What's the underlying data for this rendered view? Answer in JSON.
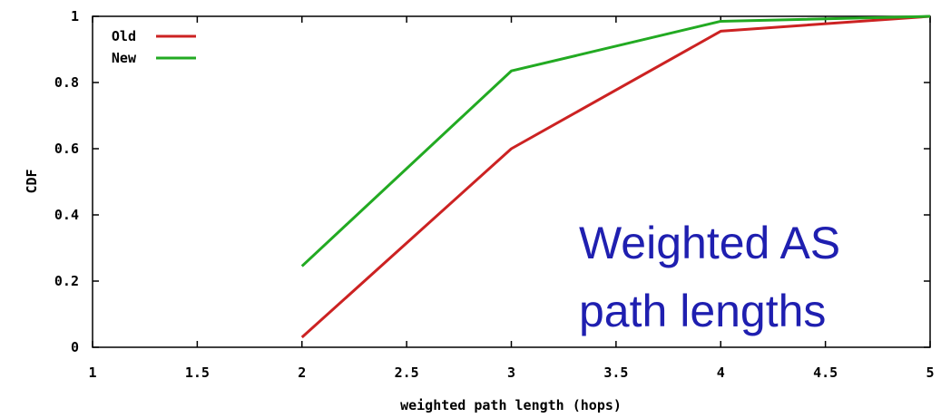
{
  "chart_data": {
    "type": "line",
    "xlabel": "weighted path length (hops)",
    "ylabel": "CDF",
    "xlim": [
      1,
      5
    ],
    "ylim": [
      0,
      1
    ],
    "x_ticks": [
      "1",
      "1.5",
      "2",
      "2.5",
      "3",
      "3.5",
      "4",
      "4.5",
      "5"
    ],
    "y_ticks": [
      "0",
      "0.2",
      "0.4",
      "0.6",
      "0.8",
      "1"
    ],
    "grid": false,
    "legend_position": "top-left",
    "series": [
      {
        "name": "Old",
        "color": "#cc2222",
        "x": [
          2,
          3,
          4,
          5
        ],
        "y": [
          0.03,
          0.6,
          0.955,
          1.0
        ]
      },
      {
        "name": "New",
        "color": "#22aa22",
        "x": [
          2,
          3,
          4,
          5
        ],
        "y": [
          0.245,
          0.835,
          0.985,
          1.0
        ]
      }
    ],
    "annotation": {
      "line1": "Weighted AS",
      "line2": "path lengths",
      "color": "#1f1fb0"
    }
  }
}
